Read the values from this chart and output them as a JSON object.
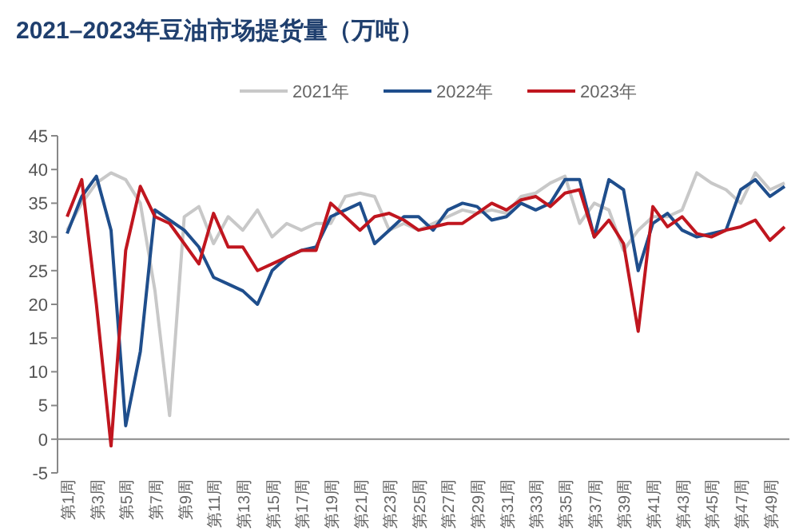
{
  "chart_data": {
    "type": "line",
    "title": "2021–2023年豆油市场提货量（万吨）",
    "categories": [
      "第1周",
      null,
      "第3周",
      null,
      "第5周",
      null,
      "第7周",
      null,
      "第9周",
      null,
      "第11周",
      null,
      "第13周",
      null,
      "第15周",
      null,
      "第17周",
      null,
      "第19周",
      null,
      "第21周",
      null,
      "第23周",
      null,
      "第25周",
      null,
      "第27周",
      null,
      "第29周",
      null,
      "第31周",
      null,
      "第33周",
      null,
      "第35周",
      null,
      "第37周",
      null,
      "第39周",
      null,
      "第41周",
      null,
      "第43周",
      null,
      "第45周",
      null,
      "第47周",
      null,
      "第49周",
      null
    ],
    "series": [
      {
        "name": "2021年",
        "color": "#c8c8c8",
        "values": [
          31,
          35,
          38,
          39.5,
          38.5,
          35,
          22,
          3.5,
          33,
          34.5,
          29,
          33,
          31,
          34,
          30,
          32,
          31,
          32,
          32,
          36,
          36.5,
          36,
          31,
          32,
          31,
          32,
          33,
          34,
          33.5,
          34,
          33.5,
          36,
          36.5,
          38,
          39,
          32,
          35,
          34,
          28,
          31,
          33,
          33,
          34,
          39.5,
          38,
          37,
          35,
          39.5,
          37,
          38
        ]
      },
      {
        "name": "2022年",
        "color": "#1f4e8c",
        "values": [
          30.5,
          36,
          39,
          31,
          2,
          13,
          34,
          32.5,
          31,
          28.5,
          24,
          23,
          22,
          20,
          25,
          27,
          28,
          28.5,
          33,
          34,
          35,
          29,
          31,
          33,
          33,
          31,
          34,
          35,
          34.5,
          32.5,
          33,
          35,
          34,
          35,
          38.5,
          38.5,
          30,
          38.5,
          37,
          25,
          32,
          33.5,
          31,
          30,
          30.5,
          31,
          37,
          38.5,
          36,
          37.5
        ]
      },
      {
        "name": "2023年",
        "color": "#c0161f",
        "values": [
          33,
          38.5,
          20,
          -1,
          28,
          37.5,
          33,
          32,
          29,
          26,
          33.5,
          28.5,
          28.5,
          25,
          26,
          27,
          28,
          28,
          35,
          33,
          31,
          33,
          33.5,
          32.5,
          31,
          31.5,
          32,
          32,
          33.5,
          35,
          34,
          35.5,
          36,
          34.5,
          36.5,
          37,
          30,
          32.5,
          29,
          16,
          34.5,
          31.5,
          33,
          30.5,
          30,
          31,
          31.5,
          32.5,
          29.5,
          31.5
        ]
      }
    ],
    "ylim": [
      -5,
      45
    ],
    "yticks": [
      -5,
      0,
      5,
      10,
      15,
      20,
      25,
      30,
      35,
      40,
      45
    ],
    "legend": "top",
    "grid": false,
    "marker": "none",
    "line_style": "solid"
  }
}
